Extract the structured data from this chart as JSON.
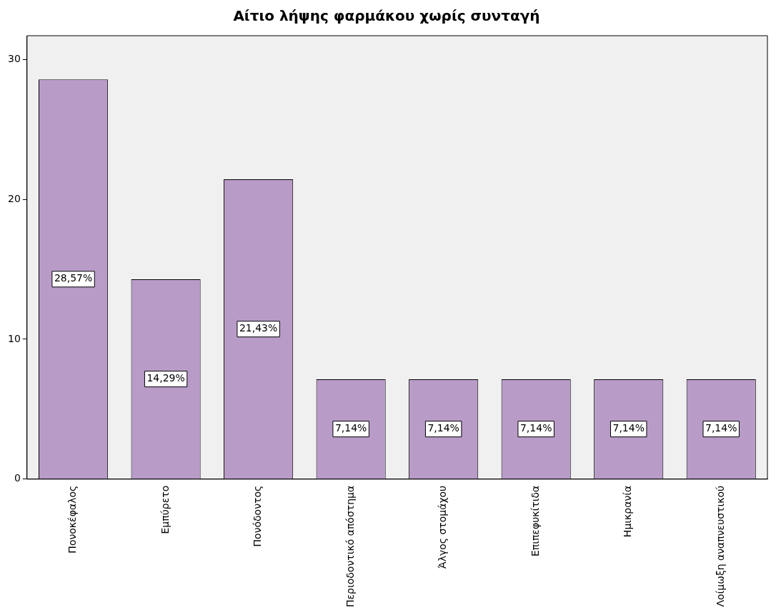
{
  "chart_data": {
    "type": "bar",
    "title": "Αίτιο λήψης φαρμάκου χωρίς συνταγή",
    "categories": [
      "Πονοκέφαλος",
      "Εμπύρετο",
      "Πονόδοντος",
      "Περιοδοντικό απόστημα",
      "Άλγος στομάχου",
      "Επιπεφυκίτιδα",
      "Ημικρανία",
      "Λοίμωξη αναπνευστικού"
    ],
    "values": [
      28.57,
      14.29,
      21.43,
      7.14,
      7.14,
      7.14,
      7.14,
      7.14
    ],
    "value_labels": [
      "28,57%",
      "14,29%",
      "21,43%",
      "7,14%",
      "7,14%",
      "7,14%",
      "7,14%",
      "7,14%"
    ],
    "color": "#b99bc8",
    "ylim": [
      0,
      31.7
    ],
    "yticks": [
      0,
      10,
      20,
      30
    ],
    "grid": false,
    "legend": false
  }
}
